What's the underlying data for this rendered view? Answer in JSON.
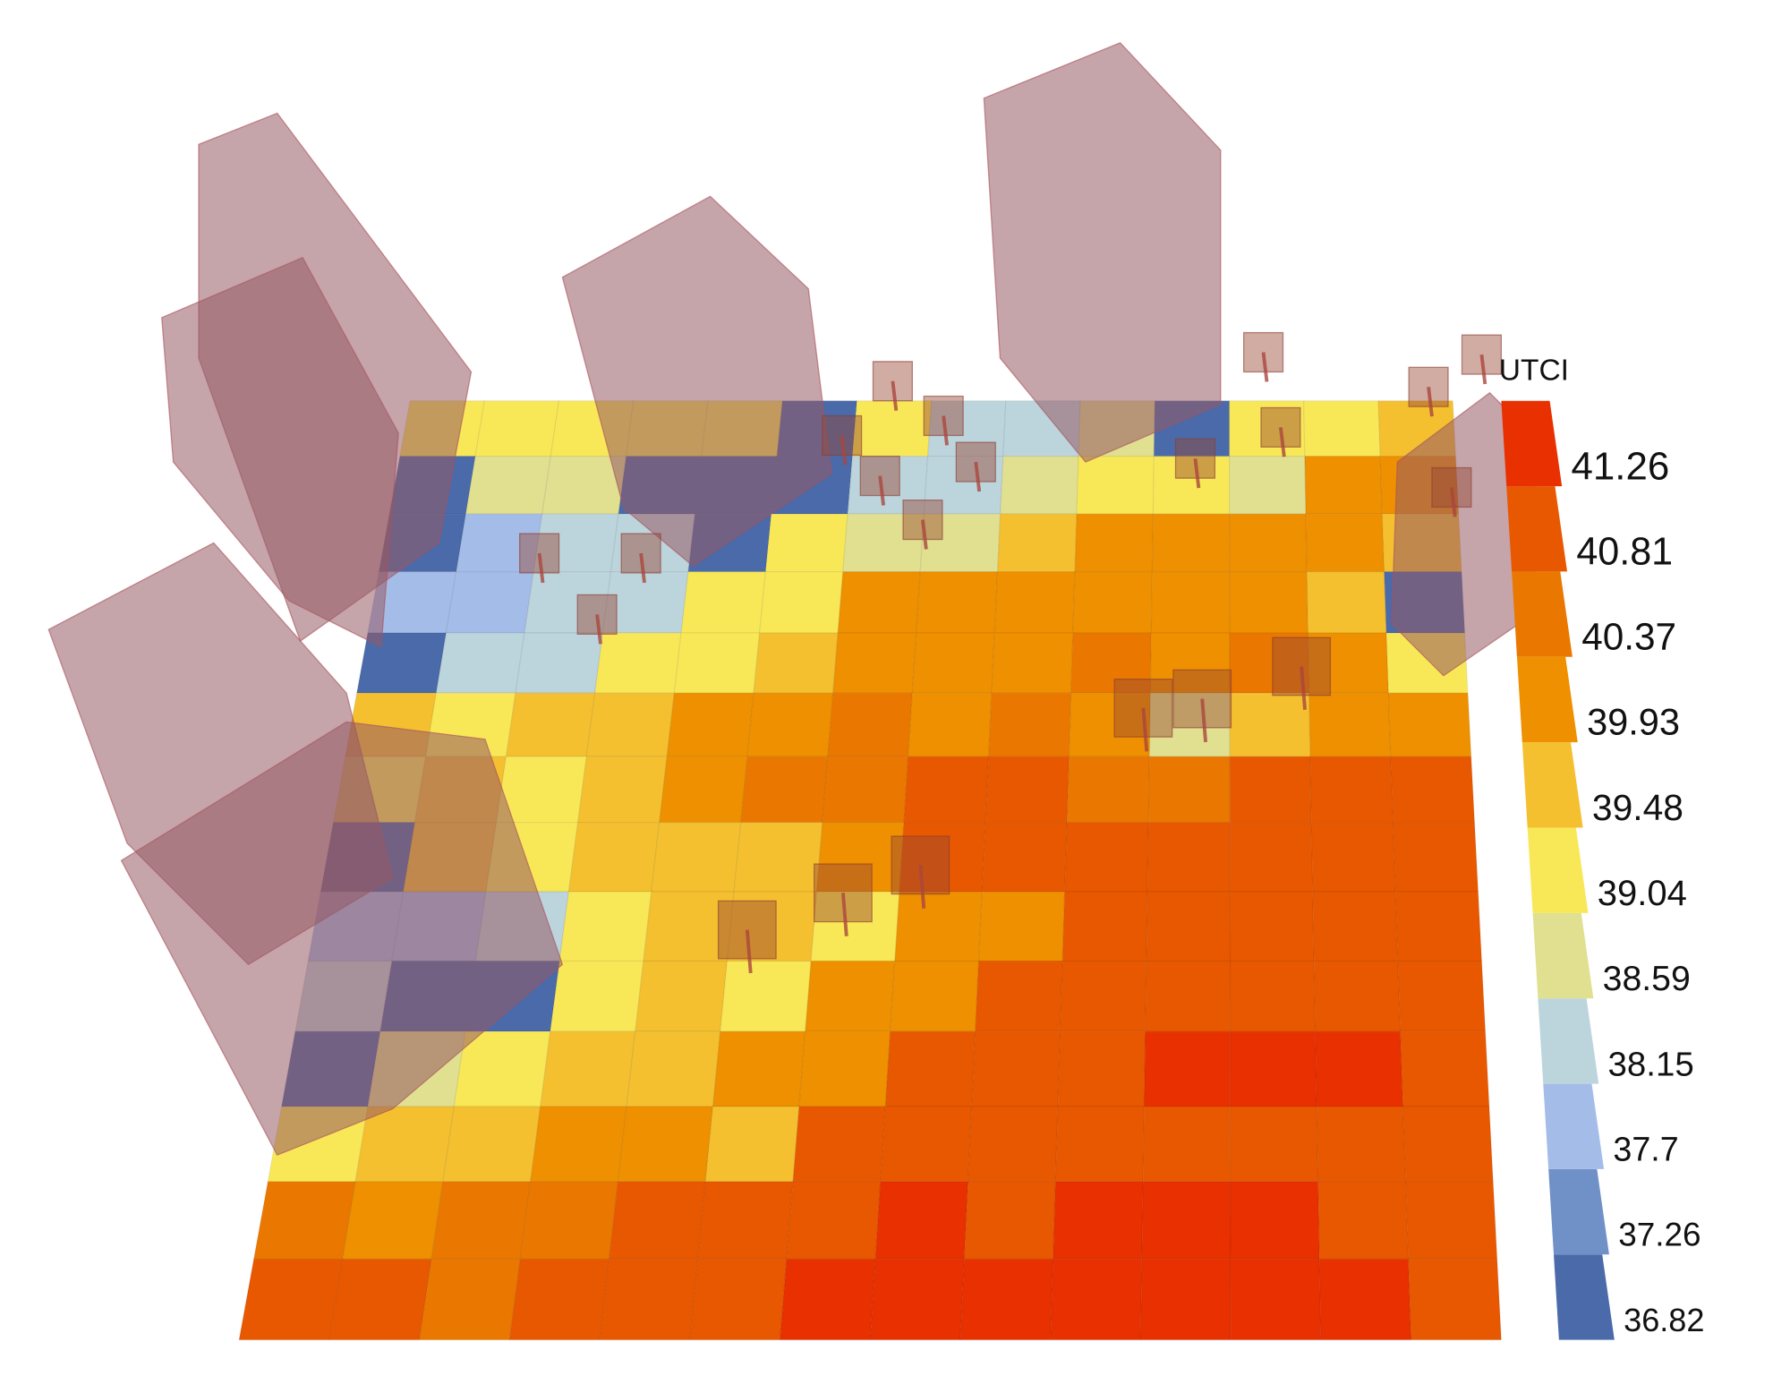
{
  "chart_data": {
    "type": "heatmap",
    "values": [
      [
        39.2,
        39.2,
        39.2,
        39.2,
        39.2,
        37.0,
        39.2,
        38.4,
        38.4,
        38.8,
        37.0,
        39.2,
        39.2,
        39.7
      ],
      [
        37.0,
        38.8,
        38.8,
        37.0,
        37.0,
        37.0,
        38.4,
        38.4,
        38.8,
        39.2,
        39.2,
        38.8,
        40.1,
        40.1
      ],
      [
        37.0,
        37.9,
        38.4,
        38.4,
        37.0,
        39.2,
        38.8,
        38.8,
        39.7,
        40.1,
        40.1,
        40.1,
        40.1,
        39.7
      ],
      [
        37.9,
        37.9,
        38.4,
        38.4,
        39.2,
        39.2,
        40.1,
        40.1,
        40.1,
        40.1,
        40.1,
        40.1,
        39.7,
        37.0
      ],
      [
        37.0,
        38.4,
        38.4,
        39.2,
        39.2,
        39.7,
        40.1,
        40.1,
        40.1,
        40.6,
        40.1,
        40.6,
        40.1,
        39.2
      ],
      [
        39.7,
        39.2,
        39.7,
        39.7,
        40.1,
        40.1,
        40.6,
        40.1,
        40.6,
        40.1,
        38.8,
        39.7,
        40.1,
        40.1
      ],
      [
        39.2,
        39.7,
        39.2,
        39.7,
        40.1,
        40.6,
        40.6,
        41.0,
        41.0,
        40.6,
        40.6,
        41.0,
        41.0,
        41.0
      ],
      [
        37.0,
        39.7,
        39.2,
        39.7,
        39.7,
        39.7,
        40.1,
        41.0,
        41.0,
        41.0,
        41.0,
        41.0,
        41.0,
        41.0
      ],
      [
        37.9,
        37.9,
        38.4,
        39.2,
        39.7,
        39.7,
        39.2,
        40.1,
        40.1,
        41.0,
        41.0,
        41.0,
        41.0,
        41.0
      ],
      [
        38.4,
        37.0,
        37.0,
        39.2,
        39.7,
        39.2,
        40.1,
        40.1,
        41.0,
        41.0,
        41.0,
        41.0,
        41.0,
        41.0
      ],
      [
        37.0,
        38.8,
        39.2,
        39.7,
        39.7,
        40.1,
        40.1,
        41.0,
        41.0,
        41.0,
        41.5,
        41.5,
        41.5,
        41.0
      ],
      [
        39.2,
        39.7,
        39.7,
        40.1,
        40.1,
        39.7,
        41.0,
        41.0,
        41.0,
        41.0,
        41.0,
        41.0,
        41.0,
        41.0
      ],
      [
        40.6,
        40.1,
        40.6,
        40.6,
        41.0,
        41.0,
        41.0,
        41.5,
        41.0,
        41.5,
        41.5,
        41.5,
        41.0,
        41.0
      ],
      [
        41.0,
        41.0,
        40.6,
        41.0,
        41.0,
        41.0,
        41.5,
        41.5,
        41.5,
        41.5,
        41.5,
        41.5,
        41.5,
        41.0
      ]
    ],
    "colorbar": {
      "title": "UTCI",
      "ticks": [
        36.82,
        37.26,
        37.7,
        38.15,
        38.59,
        39.04,
        39.48,
        39.93,
        40.37,
        40.81,
        41.26
      ],
      "colors": [
        "#4a6aaa",
        "#7090c8",
        "#a4bce8",
        "#bcd4dc",
        "#e0e090",
        "#f8e858",
        "#f4c030",
        "#ee9000",
        "#ea7800",
        "#e85800",
        "#e83000"
      ]
    }
  }
}
